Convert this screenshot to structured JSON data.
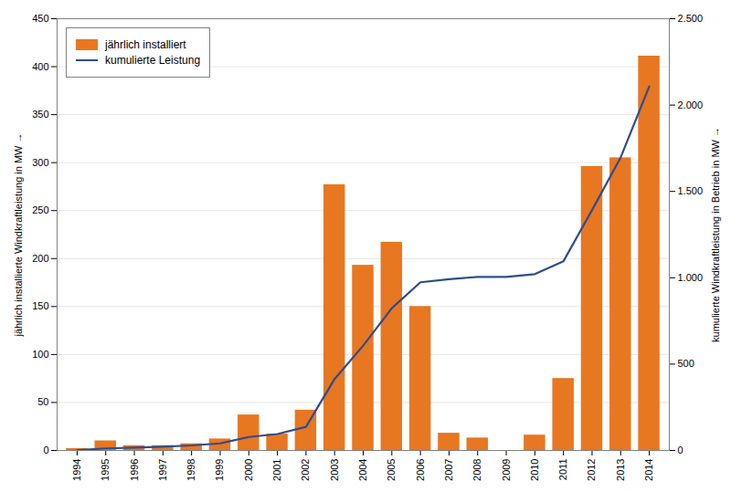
{
  "chart_data": {
    "type": "bar",
    "x": [
      1994,
      1995,
      1996,
      1997,
      1998,
      1999,
      2000,
      2001,
      2002,
      2003,
      2004,
      2005,
      2006,
      2007,
      2008,
      2009,
      2010,
      2011,
      2012,
      2013,
      2014
    ],
    "xlim": [
      1993.3,
      2014.7
    ],
    "xticks": [
      1994,
      1995,
      1996,
      1997,
      1998,
      1999,
      2000,
      2001,
      2002,
      2003,
      2004,
      2005,
      2006,
      2007,
      2008,
      2009,
      2010,
      2011,
      2012,
      2013,
      2014
    ],
    "ylabel": "jährlich installierte Windkraftleistung in MW",
    "y2label": "kumulierte Windkraftleistung in Betrieb in MW",
    "ylim": [
      0,
      450
    ],
    "yticks": [
      0,
      50,
      100,
      150,
      200,
      250,
      300,
      350,
      400,
      450
    ],
    "y2lim": [
      0,
      2500
    ],
    "y2ticks": [
      0,
      500,
      {
        "value": 1000,
        "label": "1.000"
      },
      {
        "value": 1500,
        "label": "1.500"
      },
      {
        "value": 2000,
        "label": "2.000"
      },
      {
        "value": 2500,
        "label": "2.500"
      }
    ],
    "grid": true,
    "legend": "upper left",
    "series": [
      {
        "name": "jährlich installiert",
        "type": "bar",
        "color": "#E87722",
        "values": [
          2,
          10,
          5,
          5,
          7,
          12,
          37,
          17,
          42,
          277,
          193,
          217,
          150,
          18,
          13,
          0,
          16,
          75,
          296,
          305,
          411
        ]
      },
      {
        "name": "kumulierte Leistung",
        "type": "line",
        "axis": "y2",
        "color": "#2E4D8E",
        "values": [
          2,
          12,
          17,
          22,
          29,
          41,
          78,
          95,
          137,
          414,
          607,
          824,
          974,
          992,
          1005,
          1005,
          1021,
          1096,
          1392,
          1697,
          2108
        ]
      }
    ]
  }
}
